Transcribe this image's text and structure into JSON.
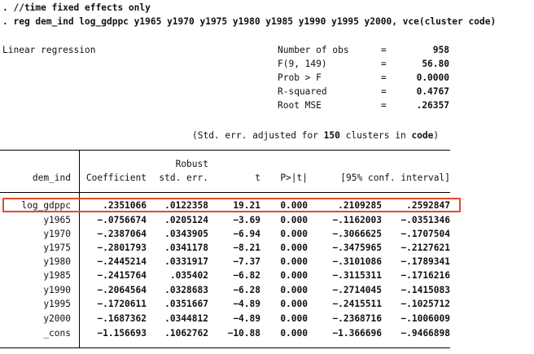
{
  "commands": {
    "comment": ". //time fixed effects only",
    "reg": ". reg dem_ind log_gdppc y1965 y1970 y1975 y1980 y1985 y1990 y1995 y2000, vce(cluster code)"
  },
  "model_title": "Linear regression",
  "stats": [
    {
      "label": "Number of obs",
      "eq": "=",
      "value": "958"
    },
    {
      "label": "F(9, 149)",
      "eq": "=",
      "value": "56.80"
    },
    {
      "label": "Prob > F",
      "eq": "=",
      "value": "0.0000"
    },
    {
      "label": "R-squared",
      "eq": "=",
      "value": "0.4767"
    },
    {
      "label": "Root MSE",
      "eq": "=",
      "value": ".26357"
    }
  ],
  "cluster_note": {
    "prefix": "(Std. err. adjusted for ",
    "count": "150",
    "middle": " clusters in ",
    "var": "code",
    "suffix": ")"
  },
  "table": {
    "header_top": {
      "robust": "Robust"
    },
    "header": {
      "depvar": "dem_ind",
      "coef": "Coefficient",
      "se": "std. err.",
      "t": "t",
      "p": "P>|t|",
      "ci": "[95% conf. interval]"
    },
    "rows": [
      {
        "name": "log_gdppc",
        "coef": ".2351066",
        "se": ".0122358",
        "t": "19.21",
        "p": "0.000",
        "lo": ".2109285",
        "hi": ".2592847"
      },
      {
        "name": "y1965",
        "coef": "-.0756674",
        "se": ".0205124",
        "t": "-3.69",
        "p": "0.000",
        "lo": "-.1162003",
        "hi": "-.0351346"
      },
      {
        "name": "y1970",
        "coef": "-.2387064",
        "se": ".0343905",
        "t": "-6.94",
        "p": "0.000",
        "lo": "-.3066625",
        "hi": "-.1707504"
      },
      {
        "name": "y1975",
        "coef": "-.2801793",
        "se": ".0341178",
        "t": "-8.21",
        "p": "0.000",
        "lo": "-.3475965",
        "hi": "-.2127621"
      },
      {
        "name": "y1980",
        "coef": "-.2445214",
        "se": ".0331917",
        "t": "-7.37",
        "p": "0.000",
        "lo": "-.3101086",
        "hi": "-.1789341"
      },
      {
        "name": "y1985",
        "coef": "-.2415764",
        "se": ".035402",
        "t": "-6.82",
        "p": "0.000",
        "lo": "-.3115311",
        "hi": "-.1716216"
      },
      {
        "name": "y1990",
        "coef": "-.2064564",
        "se": ".0328683",
        "t": "-6.28",
        "p": "0.000",
        "lo": "-.2714045",
        "hi": "-.1415083"
      },
      {
        "name": "y1995",
        "coef": "-.1720611",
        "se": ".0351667",
        "t": "-4.89",
        "p": "0.000",
        "lo": "-.2415511",
        "hi": "-.1025712"
      },
      {
        "name": "y2000",
        "coef": "-.1687362",
        "se": ".0344812",
        "t": "-4.89",
        "p": "0.000",
        "lo": "-.2368716",
        "hi": "-.1006009"
      },
      {
        "name": "_cons",
        "coef": "-1.156693",
        "se": ".1062762",
        "t": "-10.88",
        "p": "0.000",
        "lo": "-1.366696",
        "hi": "-.9466898"
      }
    ]
  },
  "highlight_color": "#e0492a"
}
